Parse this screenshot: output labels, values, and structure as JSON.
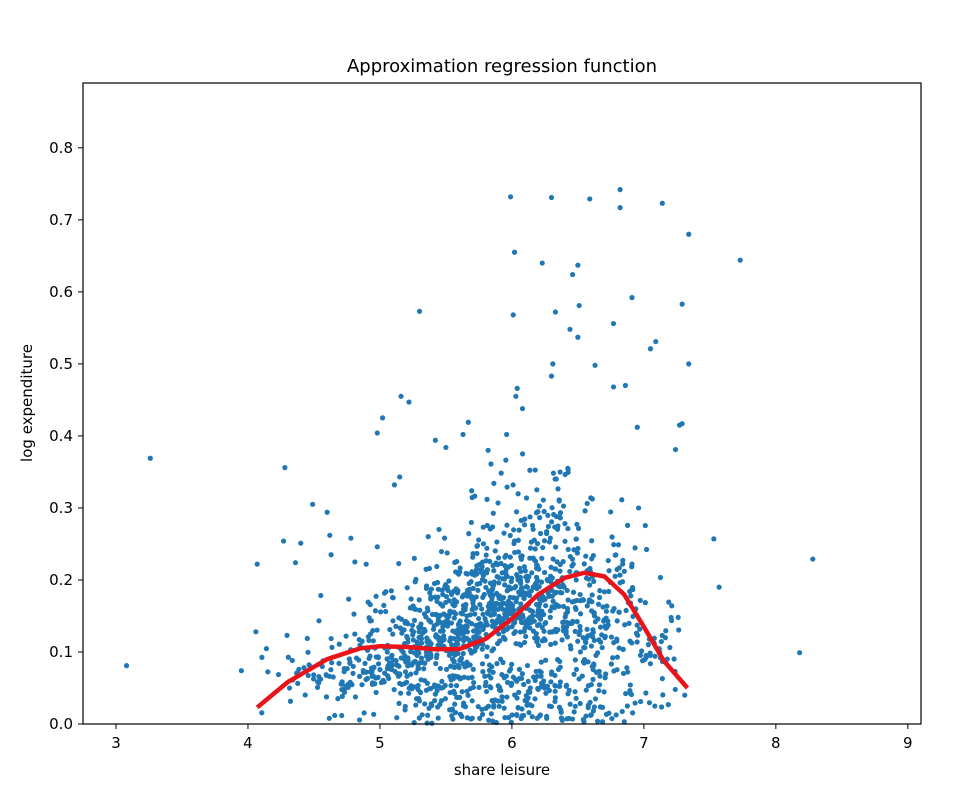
{
  "chart_data": {
    "type": "scatter",
    "title": "Approximation regression function",
    "xlabel": "share leisure",
    "ylabel": "log expenditure",
    "xlim": [
      2.75,
      9.1
    ],
    "ylim": [
      0.0,
      0.89
    ],
    "xticks": [
      3,
      4,
      5,
      6,
      7,
      8,
      9
    ],
    "xtick_labels": [
      "3",
      "4",
      "5",
      "6",
      "7",
      "8",
      "9"
    ],
    "yticks": [
      0.0,
      0.1,
      0.2,
      0.3,
      0.4,
      0.5,
      0.6,
      0.7,
      0.8
    ],
    "ytick_labels": [
      "0.0",
      "0.1",
      "0.2",
      "0.3",
      "0.4",
      "0.5",
      "0.6",
      "0.7",
      "0.8"
    ],
    "grid": false,
    "legend": "none",
    "colors": {
      "scatter": "#1f77b4",
      "regression": "#e8141a"
    },
    "series": [
      {
        "kind": "scatter",
        "points": [
          [
            3.08,
            0.081
          ],
          [
            3.26,
            0.369
          ],
          [
            3.95,
            0.074
          ],
          [
            4.06,
            0.128
          ],
          [
            4.07,
            0.222
          ],
          [
            4.28,
            0.356
          ],
          [
            4.27,
            0.254
          ],
          [
            4.36,
            0.224
          ],
          [
            4.4,
            0.251
          ],
          [
            4.49,
            0.305
          ],
          [
            4.6,
            0.294
          ],
          [
            4.62,
            0.262
          ],
          [
            4.63,
            0.235
          ],
          [
            4.78,
            0.258
          ],
          [
            4.81,
            0.225
          ],
          [
            4.98,
            0.404
          ],
          [
            5.02,
            0.425
          ],
          [
            4.98,
            0.246
          ],
          [
            5.11,
            0.332
          ],
          [
            5.15,
            0.343
          ],
          [
            5.16,
            0.455
          ],
          [
            5.22,
            0.447
          ],
          [
            5.3,
            0.573
          ],
          [
            5.42,
            0.394
          ],
          [
            5.5,
            0.384
          ],
          [
            5.63,
            0.402
          ],
          [
            5.67,
            0.419
          ],
          [
            5.82,
            0.38
          ],
          [
            5.96,
            0.402
          ],
          [
            5.99,
            0.732
          ],
          [
            6.01,
            0.568
          ],
          [
            6.02,
            0.655
          ],
          [
            6.03,
            0.455
          ],
          [
            6.04,
            0.466
          ],
          [
            6.08,
            0.438
          ],
          [
            6.23,
            0.64
          ],
          [
            6.3,
            0.731
          ],
          [
            6.3,
            0.483
          ],
          [
            6.31,
            0.5
          ],
          [
            6.33,
            0.572
          ],
          [
            6.44,
            0.548
          ],
          [
            6.46,
            0.624
          ],
          [
            6.5,
            0.637
          ],
          [
            6.51,
            0.581
          ],
          [
            6.5,
            0.537
          ],
          [
            6.59,
            0.729
          ],
          [
            6.63,
            0.498
          ],
          [
            6.77,
            0.556
          ],
          [
            6.82,
            0.742
          ],
          [
            6.82,
            0.717
          ],
          [
            6.91,
            0.592
          ],
          [
            7.05,
            0.521
          ],
          [
            7.09,
            0.531
          ],
          [
            7.14,
            0.723
          ],
          [
            7.29,
            0.583
          ],
          [
            7.34,
            0.68
          ],
          [
            7.34,
            0.5
          ],
          [
            7.27,
            0.415
          ],
          [
            7.29,
            0.417
          ],
          [
            7.24,
            0.381
          ],
          [
            7.53,
            0.257
          ],
          [
            7.57,
            0.19
          ],
          [
            7.73,
            0.644
          ],
          [
            8.18,
            0.099
          ],
          [
            8.28,
            0.229
          ],
          [
            7.26,
            0.148
          ],
          [
            7.31,
            0.04
          ],
          [
            7.12,
            0.1
          ],
          [
            7.14,
            0.063
          ],
          [
            6.96,
            0.3
          ],
          [
            6.95,
            0.412
          ],
          [
            6.86,
            0.47
          ],
          [
            6.77,
            0.468
          ],
          [
            6.91,
            0.222
          ]
        ],
        "dense_cloud": {
          "x_range": [
            4.1,
            7.3
          ],
          "y_range": [
            0.0,
            0.38
          ],
          "peak_x": 5.9,
          "approx_count": 1500
        }
      },
      {
        "kind": "line",
        "x": [
          4.07,
          4.3,
          4.6,
          4.85,
          5.0,
          5.2,
          5.4,
          5.6,
          5.8,
          6.0,
          6.2,
          6.4,
          6.55,
          6.7,
          6.85,
          7.0,
          7.15,
          7.33
        ],
        "y": [
          0.023,
          0.058,
          0.09,
          0.105,
          0.108,
          0.107,
          0.104,
          0.104,
          0.118,
          0.146,
          0.18,
          0.203,
          0.21,
          0.205,
          0.18,
          0.135,
          0.088,
          0.05
        ]
      }
    ]
  }
}
